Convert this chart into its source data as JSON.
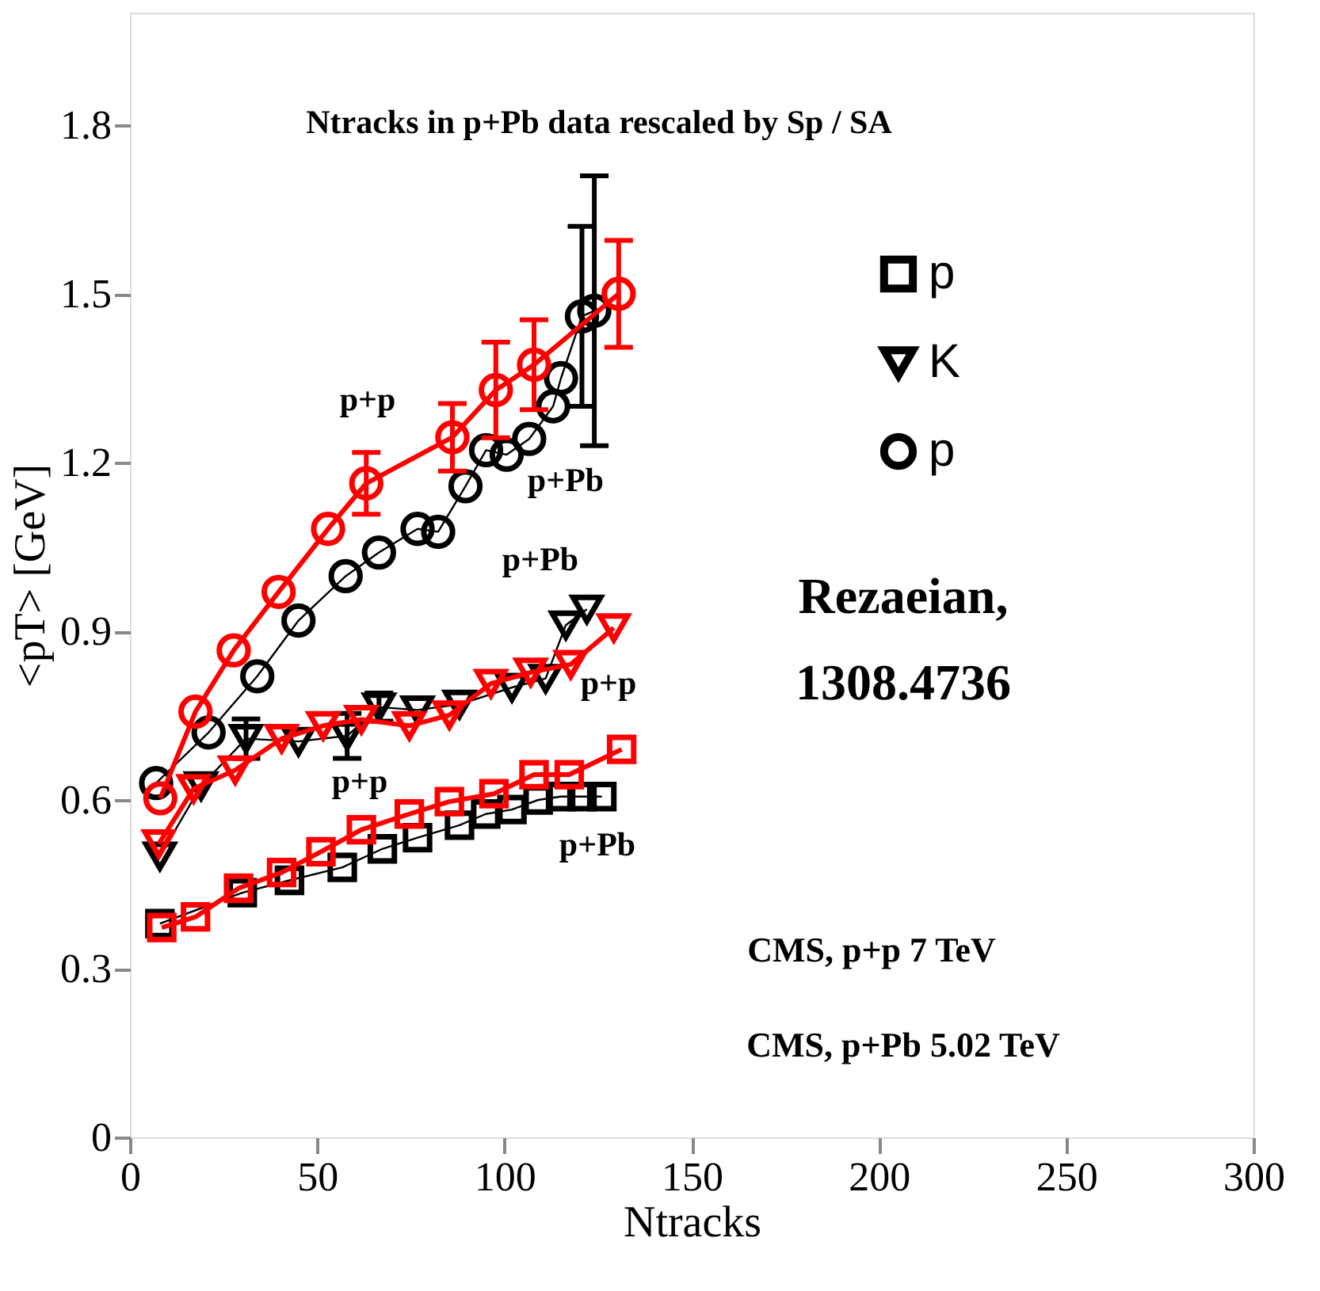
{
  "chart_data": {
    "type": "line",
    "title": "Ntracks in p+Pb data rescaled by Sp / SA",
    "xlabel": "Ntracks",
    "ylabel": "<pT> [GeV]",
    "xlim": [
      0,
      300
    ],
    "ylim": [
      0,
      2
    ],
    "xticks": [
      0,
      50,
      100,
      150,
      200,
      250,
      300
    ],
    "yticks": [
      0,
      0.3,
      0.6,
      0.9,
      1.2,
      1.5,
      1.8
    ],
    "grid": false,
    "legend": "top right",
    "line_style": "solid",
    "series": [
      {
        "name": "p",
        "color": "#000000",
        "marker": "square",
        "x": [
          8,
          30,
          42.6,
          56.7,
          67.4,
          76.8,
          88,
          95,
          102,
          109,
          115,
          120.7,
          126
        ],
        "values": [
          0.38,
          0.435,
          0.457,
          0.48,
          0.513,
          0.533,
          0.555,
          0.575,
          0.583,
          0.6,
          0.606,
          0.606,
          0.606
        ]
      },
      {
        "name": "K",
        "color": "#000000",
        "marker": "triangle",
        "x": [
          8,
          19,
          31,
          45,
          58,
          66.5,
          76.8,
          88,
          102,
          111,
          116.4,
          122
        ],
        "values": [
          0.5,
          0.625,
          0.709,
          0.704,
          0.714,
          0.765,
          0.76,
          0.77,
          0.8,
          0.816,
          0.911,
          0.939
        ],
        "errors": [
          null,
          null,
          0.035,
          null,
          0.04,
          0.025,
          null,
          null,
          null,
          null,
          null,
          null
        ]
      },
      {
        "name": "p",
        "color": "#000000",
        "marker": "circle",
        "x": [
          7,
          21,
          34,
          45,
          57.6,
          66.5,
          76.8,
          82.3,
          89.6,
          95.1,
          100.6,
          106.6,
          113,
          115.1,
          120.7,
          124
        ],
        "values": [
          0.63,
          0.72,
          0.82,
          0.919,
          0.998,
          1.04,
          1.082,
          1.077,
          1.158,
          1.222,
          1.214,
          1.242,
          1.3,
          1.35,
          1.46,
          1.47
        ],
        "errors": [
          null,
          null,
          null,
          null,
          null,
          null,
          null,
          null,
          null,
          null,
          null,
          null,
          null,
          null,
          0.16,
          0.24
        ]
      },
      {
        "color": "#ff0000",
        "marker": "square",
        "x": [
          8.5,
          17.5,
          29,
          40.5,
          51,
          61.8,
          74.6,
          85.3,
          97.2,
          107.9,
          117.3,
          131.3
        ],
        "values": [
          0.373,
          0.392,
          0.443,
          0.471,
          0.508,
          0.547,
          0.575,
          0.597,
          0.611,
          0.645,
          0.645,
          0.69
        ]
      },
      {
        "color": "#ff0000",
        "marker": "triangle",
        "x": [
          7.7,
          17,
          28.1,
          40.5,
          51.6,
          61.8,
          74.6,
          85.3,
          96.4,
          107,
          117.7,
          129.2
        ],
        "values": [
          0.522,
          0.62,
          0.653,
          0.709,
          0.732,
          0.743,
          0.732,
          0.751,
          0.807,
          0.827,
          0.841,
          0.906
        ]
      },
      {
        "color": "#ff0000",
        "marker": "circle",
        "x": [
          8.1,
          17.5,
          27.7,
          39.7,
          52.9,
          63.1,
          86.1,
          97.7,
          107.9,
          130.5
        ],
        "values": [
          0.603,
          0.757,
          0.866,
          0.97,
          1.082,
          1.163,
          1.245,
          1.329,
          1.374,
          1.5
        ],
        "errors": [
          null,
          null,
          null,
          null,
          null,
          0.055,
          0.06,
          0.085,
          0.08,
          0.095
        ]
      }
    ],
    "annotations": [
      "p+p",
      "p+Pb",
      "p+Pb",
      "p+p",
      "p+p",
      "p+Pb",
      "Rezaeian,\n1308.4736",
      "CMS, p+p 7 TeV",
      "CMS, p+Pb 5.02 TeV"
    ]
  }
}
